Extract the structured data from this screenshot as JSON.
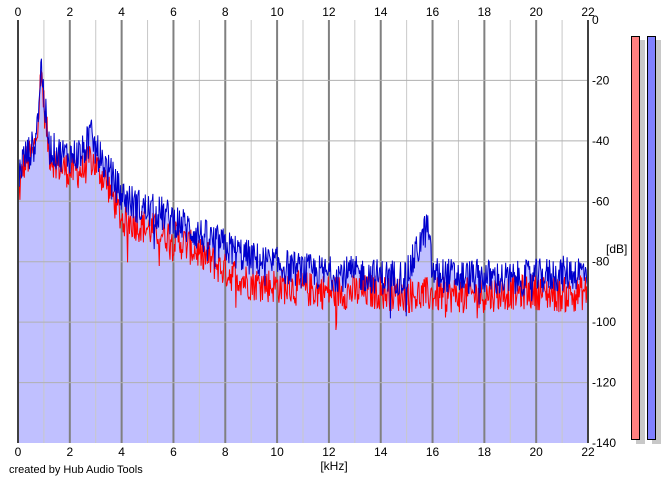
{
  "credit_text": "created by Hub Audio Tools",
  "chart_data": {
    "type": "area",
    "xlabel": "[kHz]",
    "ylabel": "[dB]",
    "xlim": [
      0,
      22
    ],
    "ylim": [
      -140,
      0
    ],
    "x_ticks": [
      "0",
      "2",
      "4",
      "6",
      "8",
      "10",
      "12",
      "14",
      "16",
      "18",
      "20",
      "22"
    ],
    "y_ticks": [
      "0",
      "-20",
      "-40",
      "-60",
      "-80",
      "-100",
      "-120",
      "-140"
    ],
    "grid": true,
    "legend": "right",
    "colors": {
      "fill": "#c0c0ff",
      "left_channel": "#ff0000",
      "right_channel": "#0000cc",
      "legend_left": "#ff8080",
      "legend_right": "#8080ff",
      "major_grid": "#808080",
      "minor_grid": "#c8c8c8"
    },
    "series": [
      {
        "x": [
          0,
          0.2,
          0.4,
          0.6,
          0.8,
          0.9,
          1.0,
          1.2,
          1.5,
          2.0,
          2.5,
          2.8,
          3.0,
          3.5,
          4.0,
          4.5,
          5.0,
          5.5,
          6.0,
          7.0,
          8.0,
          9.0,
          10.0,
          11.0,
          12.0,
          13.0,
          14.0,
          15.0,
          15.8,
          16.0,
          17.0,
          18.0,
          19.0,
          20.0,
          21.0,
          22.0
        ],
        "values": [
          -60,
          -48,
          -46,
          -44,
          -30,
          -16,
          -28,
          -44,
          -48,
          -50,
          -50,
          -46,
          -48,
          -55,
          -66,
          -67,
          -69,
          -70,
          -72,
          -77,
          -83,
          -87,
          -88,
          -89,
          -90,
          -90,
          -90,
          -91,
          -91,
          -91,
          -91,
          -91,
          -90,
          -90,
          -91,
          -90
        ]
      },
      {
        "x": [
          0,
          0.2,
          0.4,
          0.6,
          0.8,
          0.9,
          1.0,
          1.2,
          1.5,
          2.0,
          2.5,
          2.8,
          3.0,
          3.5,
          4.0,
          4.5,
          5.0,
          5.5,
          6.0,
          7.0,
          8.0,
          9.0,
          10.0,
          11.0,
          12.0,
          13.0,
          14.0,
          15.0,
          15.8,
          16.0,
          17.0,
          18.0,
          19.0,
          20.0,
          21.0,
          22.0
        ],
        "values": [
          -52,
          -46,
          -44,
          -42,
          -28,
          -14,
          -26,
          -42,
          -44,
          -45,
          -44,
          -38,
          -43,
          -50,
          -58,
          -61,
          -63,
          -64,
          -66,
          -71,
          -75,
          -79,
          -81,
          -83,
          -84,
          -84,
          -85,
          -85,
          -68,
          -84,
          -85,
          -85,
          -86,
          -85,
          -84,
          -83
        ]
      }
    ]
  }
}
